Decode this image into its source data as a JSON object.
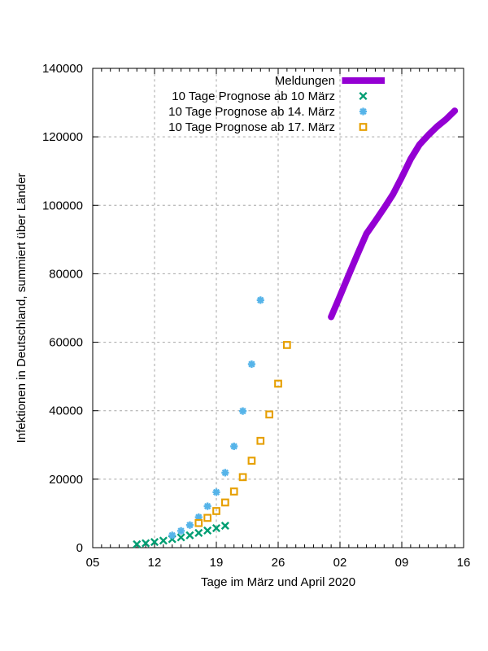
{
  "chart_data": {
    "type": "line+scatter",
    "title": "",
    "xlabel": "Tage im März und April 2020",
    "ylabel": "Infektionen in Deutschland, summiert über Länder",
    "grid": true,
    "legend_position": "top-right-inside",
    "x_axis": {
      "description": "days, March 5 2020 (day 0) to April 16 2020 (day 42)",
      "tick_labels": [
        "05",
        "12",
        "19",
        "26",
        "02",
        "09",
        "16"
      ],
      "tick_days": [
        0,
        7,
        14,
        21,
        28,
        35,
        42
      ],
      "minor_tick_every_days": 1,
      "grid_days": [
        7,
        14,
        21,
        28,
        35
      ]
    },
    "y_axis": {
      "min": 0,
      "max": 140000,
      "tick_values": [
        0,
        20000,
        40000,
        60000,
        80000,
        100000,
        120000,
        140000
      ],
      "grid_values": [
        20000,
        40000,
        60000,
        80000,
        100000,
        120000
      ]
    },
    "series": [
      {
        "name": "Meldungen",
        "type": "line",
        "color": "#9400d3",
        "line_width": 8,
        "x_dates": [
          "01.04",
          "02.04",
          "03.04",
          "04.04",
          "05.04",
          "06.04",
          "07.04",
          "08.04",
          "09.04",
          "10.04",
          "11.04",
          "12.04",
          "13.04",
          "14.04",
          "15.04"
        ],
        "x_days": [
          27,
          28,
          29,
          30,
          31,
          32,
          33,
          34,
          35,
          36,
          37,
          38,
          39,
          40,
          41
        ],
        "values": [
          67400,
          73500,
          79700,
          85800,
          91700,
          95400,
          99200,
          103200,
          108200,
          113500,
          117700,
          120500,
          123000,
          125100,
          127600
        ]
      },
      {
        "name": "10 Tage Prognose ab 10 März",
        "type": "points",
        "marker": "cross",
        "color": "#009e73",
        "x_dates": [
          "10.03",
          "11.03",
          "12.03",
          "13.03",
          "14.03",
          "15.03",
          "16.03",
          "17.03",
          "18.03",
          "19.03",
          "20.03"
        ],
        "x_days": [
          5,
          6,
          7,
          8,
          9,
          10,
          11,
          12,
          13,
          14,
          15
        ],
        "values": [
          1000,
          1300,
          1650,
          2050,
          2500,
          3000,
          3600,
          4300,
          5000,
          5700,
          6400
        ]
      },
      {
        "name": "10 Tage Prognose ab 14. März",
        "type": "points",
        "marker": "asterisk",
        "color": "#56b4e9",
        "x_dates": [
          "14.03",
          "15.03",
          "16.03",
          "17.03",
          "18.03",
          "19.03",
          "20.03",
          "21.03",
          "22.03",
          "23.03",
          "24.03"
        ],
        "x_days": [
          9,
          10,
          11,
          12,
          13,
          14,
          15,
          16,
          17,
          18,
          19
        ],
        "values": [
          3600,
          4900,
          6600,
          8900,
          12100,
          16200,
          21900,
          29600,
          39900,
          53600,
          72300
        ]
      },
      {
        "name": "10 Tage Prognose ab 17. März",
        "type": "points",
        "marker": "open-square",
        "color": "#e69f00",
        "x_dates": [
          "17.03",
          "18.03",
          "19.03",
          "20.03",
          "21.03",
          "22.03",
          "23.03",
          "24.03",
          "25.03",
          "26.03",
          "27.03"
        ],
        "x_days": [
          12,
          13,
          14,
          15,
          16,
          17,
          18,
          19,
          20,
          21,
          22
        ],
        "values": [
          7200,
          8700,
          10700,
          13200,
          16400,
          20600,
          25400,
          31200,
          38900,
          47900,
          59200
        ]
      }
    ]
  }
}
